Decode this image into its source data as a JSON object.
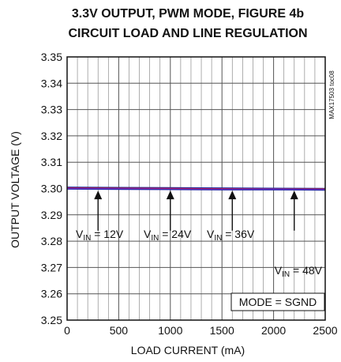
{
  "chart_data": {
    "type": "line",
    "title": "3.3V OUTPUT, PWM MODE, FIGURE 4b",
    "subtitle": "CIRCUIT LOAD AND LINE REGULATION",
    "xlabel": "LOAD CURRENT (mA)",
    "ylabel": "OUTPUT VOLTAGE (V)",
    "xlim": [
      0,
      2500
    ],
    "ylim": [
      3.25,
      3.35
    ],
    "grid": true,
    "x_ticks": [
      "0",
      "500",
      "1000",
      "1500",
      "2000",
      "2500"
    ],
    "y_ticks": [
      "3.25",
      "3.26",
      "3.27",
      "3.28",
      "3.29",
      "3.30",
      "3.31",
      "3.32",
      "3.33",
      "3.34",
      "3.35"
    ],
    "x": [
      0,
      500,
      1000,
      1500,
      2000,
      2500
    ],
    "series": [
      {
        "name": "VIN = 12V",
        "color": "#1a2fa0",
        "values": [
          3.3005,
          3.3004,
          3.3003,
          3.3002,
          3.3001,
          3.3
        ]
      },
      {
        "name": "VIN = 24V",
        "color": "#d01818",
        "values": [
          3.3002,
          3.3001,
          3.3,
          3.2999,
          3.2998,
          3.2998
        ]
      },
      {
        "name": "VIN = 36V",
        "color": "#8a2be2",
        "values": [
          3.3,
          3.2999,
          3.2998,
          3.2997,
          3.2997,
          3.2996
        ]
      },
      {
        "name": "VIN = 48V",
        "color": "#2a2aa8",
        "values": [
          3.2998,
          3.2997,
          3.2996,
          3.2995,
          3.2995,
          3.2994
        ]
      }
    ],
    "annotations": [
      {
        "prefix": "V",
        "sub": "IN",
        "suffix": " = 12V",
        "arrow_x": 300
      },
      {
        "prefix": "V",
        "sub": "IN",
        "suffix": " = 24V",
        "arrow_x": 1000
      },
      {
        "prefix": "V",
        "sub": "IN",
        "suffix": " = 36V",
        "arrow_x": 1600
      },
      {
        "prefix": "V",
        "sub": "IN",
        "suffix": " = 48V",
        "arrow_x": 2200
      }
    ],
    "mode_label": "MODE = SGND",
    "side_tag": "MAX17503 toc08"
  }
}
